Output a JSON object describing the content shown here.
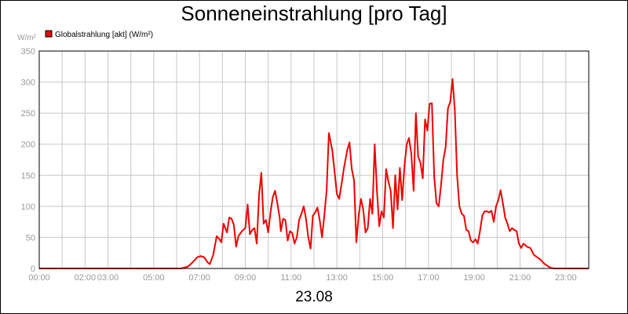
{
  "chart_data": {
    "type": "line",
    "title": "Sonneneinstrahlung [pro Tag]",
    "ylabel": "W/m²",
    "xlabel": "23.08",
    "ylim": [
      0,
      350
    ],
    "xlim": [
      0,
      24
    ],
    "grid": true,
    "legend_position": "top-left",
    "y_ticks": [
      0,
      50,
      100,
      150,
      200,
      250,
      300,
      350
    ],
    "x_ticks": [
      {
        "hour": 0,
        "label": "00:00"
      },
      {
        "hour": 2,
        "label": "02:00"
      },
      {
        "hour": 3,
        "label": "03:00"
      },
      {
        "hour": 5,
        "label": "05:00"
      },
      {
        "hour": 7,
        "label": "07:00"
      },
      {
        "hour": 9,
        "label": "09:00"
      },
      {
        "hour": 11,
        "label": "11:00"
      },
      {
        "hour": 13,
        "label": "13:00"
      },
      {
        "hour": 15,
        "label": "15:00"
      },
      {
        "hour": 17,
        "label": "17:00"
      },
      {
        "hour": 19,
        "label": "19:00"
      },
      {
        "hour": 21,
        "label": "21:00"
      },
      {
        "hour": 23,
        "label": "23:00"
      }
    ],
    "series": [
      {
        "name": "Globalstrahlung [akt] (W/m²)",
        "color": "#ee0000",
        "points": [
          [
            0.0,
            0
          ],
          [
            6.2,
            0
          ],
          [
            6.5,
            3
          ],
          [
            6.7,
            10
          ],
          [
            6.9,
            18
          ],
          [
            7.05,
            20
          ],
          [
            7.2,
            18
          ],
          [
            7.35,
            10
          ],
          [
            7.45,
            7
          ],
          [
            7.6,
            22
          ],
          [
            7.75,
            52
          ],
          [
            7.85,
            48
          ],
          [
            7.95,
            42
          ],
          [
            8.05,
            72
          ],
          [
            8.2,
            58
          ],
          [
            8.3,
            82
          ],
          [
            8.4,
            80
          ],
          [
            8.5,
            70
          ],
          [
            8.6,
            35
          ],
          [
            8.7,
            52
          ],
          [
            8.85,
            60
          ],
          [
            9.0,
            65
          ],
          [
            9.1,
            103
          ],
          [
            9.2,
            55
          ],
          [
            9.3,
            62
          ],
          [
            9.4,
            65
          ],
          [
            9.5,
            40
          ],
          [
            9.6,
            118
          ],
          [
            9.7,
            154
          ],
          [
            9.8,
            72
          ],
          [
            9.9,
            78
          ],
          [
            10.0,
            58
          ],
          [
            10.1,
            90
          ],
          [
            10.2,
            115
          ],
          [
            10.3,
            125
          ],
          [
            10.4,
            105
          ],
          [
            10.5,
            82
          ],
          [
            10.55,
            60
          ],
          [
            10.65,
            80
          ],
          [
            10.75,
            78
          ],
          [
            10.85,
            45
          ],
          [
            10.95,
            60
          ],
          [
            11.05,
            57
          ],
          [
            11.15,
            40
          ],
          [
            11.25,
            50
          ],
          [
            11.35,
            78
          ],
          [
            11.45,
            88
          ],
          [
            11.55,
            100
          ],
          [
            11.65,
            80
          ],
          [
            11.75,
            50
          ],
          [
            11.85,
            32
          ],
          [
            11.95,
            85
          ],
          [
            12.05,
            90
          ],
          [
            12.15,
            98
          ],
          [
            12.25,
            78
          ],
          [
            12.35,
            50
          ],
          [
            12.45,
            85
          ],
          [
            12.55,
            125
          ],
          [
            12.65,
            218
          ],
          [
            12.8,
            190
          ],
          [
            12.9,
            155
          ],
          [
            13.0,
            120
          ],
          [
            13.1,
            112
          ],
          [
            13.2,
            135
          ],
          [
            13.3,
            160
          ],
          [
            13.45,
            190
          ],
          [
            13.55,
            203
          ],
          [
            13.65,
            160
          ],
          [
            13.75,
            142
          ],
          [
            13.85,
            42
          ],
          [
            13.95,
            85
          ],
          [
            14.05,
            112
          ],
          [
            14.15,
            95
          ],
          [
            14.25,
            58
          ],
          [
            14.35,
            65
          ],
          [
            14.45,
            112
          ],
          [
            14.55,
            88
          ],
          [
            14.65,
            200
          ],
          [
            14.75,
            125
          ],
          [
            14.85,
            68
          ],
          [
            14.95,
            92
          ],
          [
            15.05,
            82
          ],
          [
            15.15,
            160
          ],
          [
            15.25,
            140
          ],
          [
            15.35,
            125
          ],
          [
            15.45,
            65
          ],
          [
            15.55,
            150
          ],
          [
            15.65,
            95
          ],
          [
            15.75,
            162
          ],
          [
            15.85,
            110
          ],
          [
            15.95,
            165
          ],
          [
            16.05,
            200
          ],
          [
            16.15,
            210
          ],
          [
            16.25,
            185
          ],
          [
            16.35,
            125
          ],
          [
            16.45,
            250
          ],
          [
            16.55,
            180
          ],
          [
            16.65,
            170
          ],
          [
            16.75,
            145
          ],
          [
            16.85,
            240
          ],
          [
            16.95,
            222
          ],
          [
            17.05,
            265
          ],
          [
            17.15,
            266
          ],
          [
            17.25,
            148
          ],
          [
            17.35,
            105
          ],
          [
            17.45,
            100
          ],
          [
            17.55,
            135
          ],
          [
            17.65,
            175
          ],
          [
            17.75,
            195
          ],
          [
            17.85,
            258
          ],
          [
            17.95,
            268
          ],
          [
            18.05,
            305
          ],
          [
            18.15,
            255
          ],
          [
            18.25,
            150
          ],
          [
            18.35,
            100
          ],
          [
            18.45,
            88
          ],
          [
            18.55,
            85
          ],
          [
            18.65,
            62
          ],
          [
            18.75,
            60
          ],
          [
            18.85,
            45
          ],
          [
            18.95,
            42
          ],
          [
            19.05,
            47
          ],
          [
            19.15,
            40
          ],
          [
            19.25,
            60
          ],
          [
            19.35,
            85
          ],
          [
            19.45,
            92
          ],
          [
            19.55,
            92
          ],
          [
            19.65,
            90
          ],
          [
            19.75,
            93
          ],
          [
            19.85,
            75
          ],
          [
            19.95,
            100
          ],
          [
            20.05,
            110
          ],
          [
            20.15,
            126
          ],
          [
            20.25,
            105
          ],
          [
            20.35,
            82
          ],
          [
            20.45,
            72
          ],
          [
            20.55,
            60
          ],
          [
            20.65,
            65
          ],
          [
            20.75,
            62
          ],
          [
            20.85,
            60
          ],
          [
            20.95,
            40
          ],
          [
            21.05,
            33
          ],
          [
            21.15,
            40
          ],
          [
            21.3,
            35
          ],
          [
            21.45,
            33
          ],
          [
            21.6,
            22
          ],
          [
            21.75,
            18
          ],
          [
            21.9,
            14
          ],
          [
            22.05,
            8
          ],
          [
            22.2,
            4
          ],
          [
            22.35,
            1
          ],
          [
            22.5,
            0
          ],
          [
            24.0,
            0
          ]
        ]
      }
    ]
  }
}
